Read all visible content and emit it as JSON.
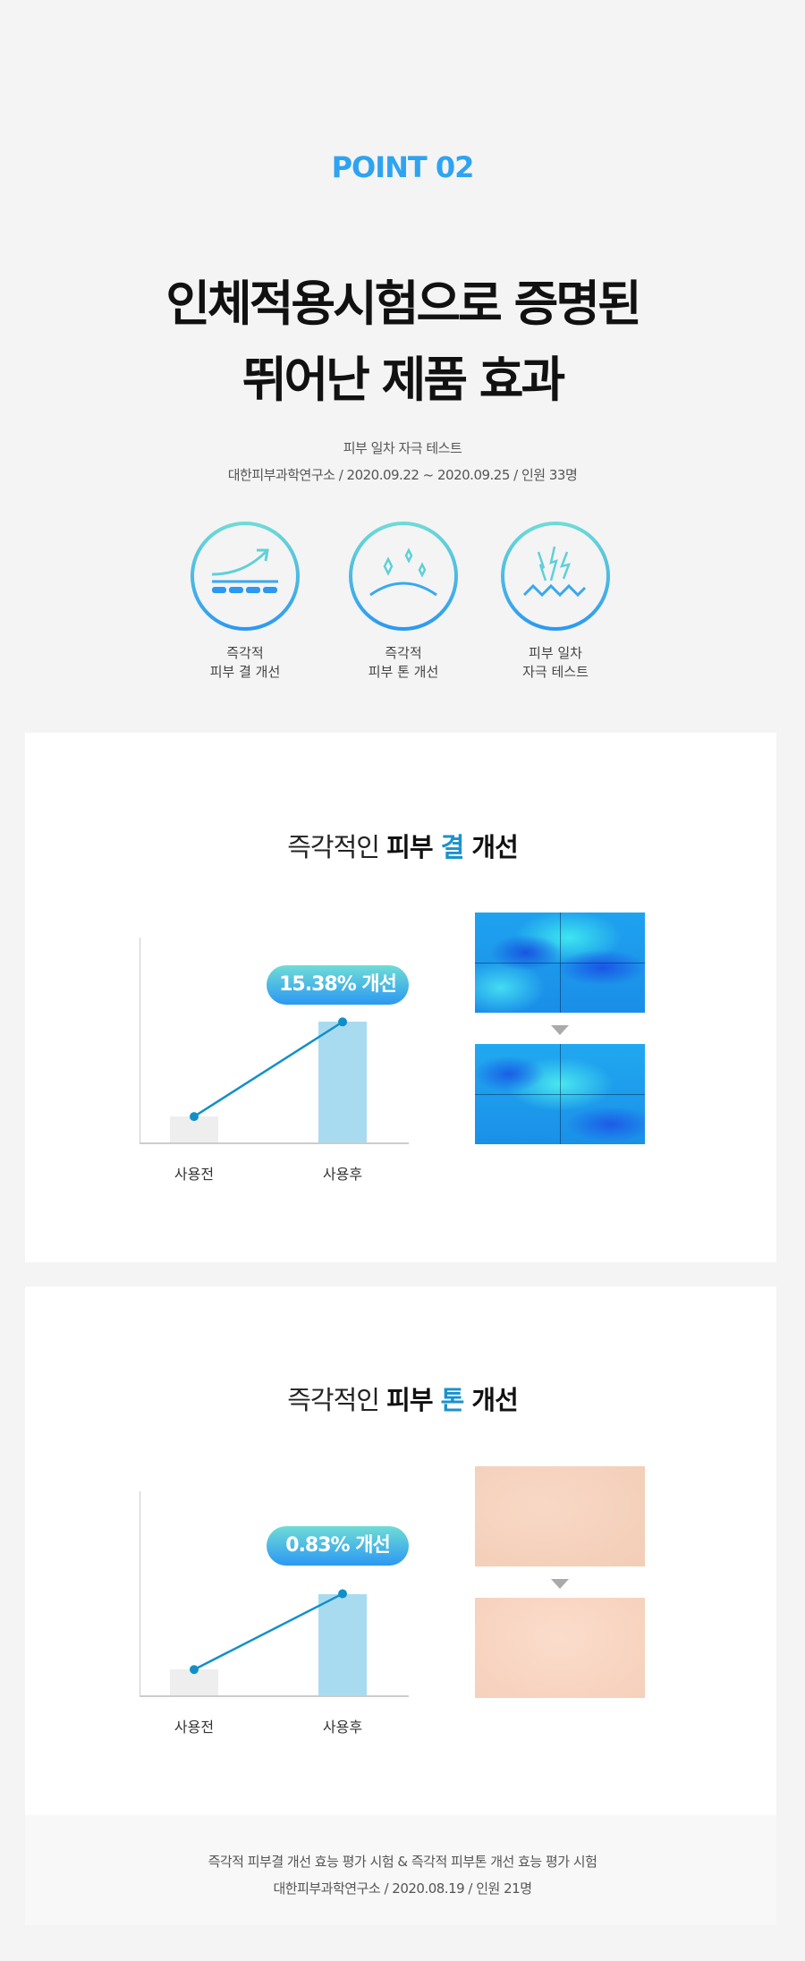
{
  "header": {
    "point": "POINT 02",
    "title_line1": "인체적용시험으로 증명된",
    "title_line2": "뛰어난 제품 효과",
    "sub_line1": "피부 일차 자극 테스트",
    "sub_line2": "대한피부과학연구소 / 2020.09.22 ~ 2020.09.25  / 인원 33명"
  },
  "icons": [
    {
      "icon": "skin-texture-arrow-icon",
      "line1": "즉각적",
      "line2": "피부 결 개선"
    },
    {
      "icon": "sparkle-skin-icon",
      "line1": "즉각적",
      "line2": "피부 톤 개선"
    },
    {
      "icon": "lightning-irritation-icon",
      "line1": "피부 일차",
      "line2": "자극 테스트"
    }
  ],
  "colors": {
    "accent": "#2ea3f2",
    "highlight": "#1a92cc",
    "bar_before": "#eeeeee",
    "bar_after": "#a9dbf0",
    "line": "#1190c8"
  },
  "chart_data": [
    {
      "type": "bar",
      "title_pre": "즉각적인 ",
      "title_bold": "피부 ",
      "title_hl": "결",
      "title_post": " 개선",
      "categories": [
        "사용전",
        "사용후"
      ],
      "values": [
        0.13,
        0.59
      ],
      "badge": "15.38% 개선",
      "overlay": "line"
    },
    {
      "type": "bar",
      "title_pre": "즉각적인 ",
      "title_bold": "피부 ",
      "title_hl": "톤",
      "title_post": " 개선",
      "categories": [
        "사용전",
        "사용후"
      ],
      "values": [
        0.13,
        0.5
      ],
      "badge": "0.83% 개선",
      "overlay": "line"
    }
  ],
  "footer": {
    "line1": "즉각적 피부결 개선 효능 평가 시험 & 즉각적 피부톤 개선 효능 평가 시험",
    "line2": "대한피부과학연구소 / 2020.08.19 / 인원 21명"
  }
}
